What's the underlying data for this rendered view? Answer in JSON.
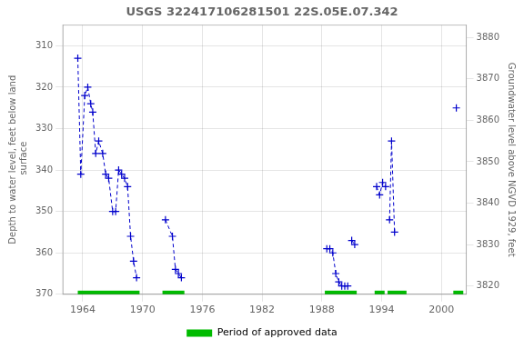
{
  "chart_data": {
    "type": "line",
    "title": "USGS 322417106281501 22S.05E.07.342",
    "y_label": "Depth to water level, feet below land\n surface",
    "y2_label": "Groundwater level above NGVD 1929, feet",
    "xlim": [
      1962.0,
      2002.5
    ],
    "xticks": [
      1964,
      1970,
      1976,
      1982,
      1988,
      1994,
      2000
    ],
    "ylim": [
      370,
      305
    ],
    "yticks": [
      310,
      320,
      330,
      340,
      350,
      360,
      370
    ],
    "y2lim": [
      3818,
      3883
    ],
    "y2ticks": [
      3820,
      3830,
      3840,
      3850,
      3860,
      3870,
      3880
    ],
    "grid": true,
    "legend": "bottom",
    "series": [
      {
        "x": [
          1963.5,
          1963.8,
          1964.2,
          1964.5,
          1964.8,
          1965.0,
          1965.3,
          1965.6,
          1966.0,
          1966.3,
          1966.6,
          1967.0,
          1967.3,
          1967.6,
          1967.9,
          1968.2,
          1968.5,
          1968.8,
          1969.1,
          1969.4
        ],
        "values": [
          313,
          341,
          322,
          320,
          324,
          326,
          336,
          333,
          336,
          341,
          342,
          350,
          350,
          340,
          341,
          342,
          344,
          356,
          362,
          366
        ],
        "color": "#0000cc",
        "line_style": "dashed",
        "marker": "plus"
      },
      {
        "x": [
          1972.3,
          1973.0,
          1973.3,
          1973.6,
          1973.9
        ],
        "values": [
          352,
          356,
          364,
          365,
          366
        ],
        "color": "#0000cc",
        "line_style": "dashed",
        "marker": "plus"
      },
      {
        "x": [
          1988.5,
          1988.8,
          1989.1,
          1989.4,
          1989.7,
          1990.0,
          1990.3,
          1990.6
        ],
        "values": [
          359,
          359,
          360,
          365,
          367,
          368,
          368,
          368
        ],
        "color": "#0000cc",
        "line_style": "dashed",
        "marker": "plus"
      },
      {
        "x": [
          1991.0,
          1991.3
        ],
        "values": [
          357,
          358
        ],
        "color": "#0000cc",
        "line_style": "dashed",
        "marker": "plus"
      },
      {
        "x": [
          1993.5,
          1993.8,
          1994.1,
          1994.4
        ],
        "values": [
          344,
          346,
          343,
          344
        ],
        "color": "#0000cc",
        "line_style": "dashed",
        "marker": "plus"
      },
      {
        "x": [
          1994.8,
          1995.0,
          1995.3
        ],
        "values": [
          352,
          333,
          355
        ],
        "color": "#0000cc",
        "line_style": "dashed",
        "marker": "plus"
      },
      {
        "x": [
          2001.5
        ],
        "values": [
          325
        ],
        "color": "#0000cc",
        "line_style": "dashed",
        "marker": "plus"
      }
    ],
    "periods": {
      "name": "Period of approved data",
      "color": "#00bb00",
      "ranges": [
        [
          1963.5,
          1969.7
        ],
        [
          1972.0,
          1974.2
        ],
        [
          1988.3,
          1991.5
        ],
        [
          1993.3,
          1994.3
        ],
        [
          1994.6,
          1996.5
        ],
        [
          2001.2,
          2002.2
        ]
      ]
    }
  }
}
